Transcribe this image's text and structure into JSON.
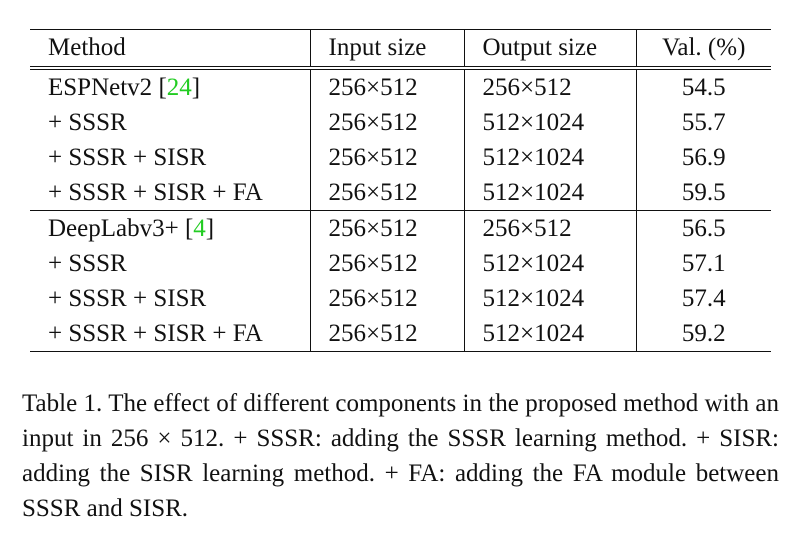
{
  "table": {
    "headers": [
      "Method",
      "Input size",
      "Output size",
      "Val. (%)"
    ],
    "groups": [
      {
        "base_name": "ESPNetv2",
        "base_ref": "24",
        "rows": [
          {
            "method": "",
            "input": "256×512",
            "output": "256×512",
            "val": "54.5",
            "bold": false
          },
          {
            "method": "+ SSSR",
            "input": "256×512",
            "output": "512×1024",
            "val": "55.7",
            "bold": false
          },
          {
            "method": "+ SSSR + SISR",
            "input": "256×512",
            "output": "512×1024",
            "val": "56.9",
            "bold": false
          },
          {
            "method": "+ SSSR + SISR + FA",
            "input": "256×512",
            "output": "512×1024",
            "val": "59.5",
            "bold": true
          }
        ]
      },
      {
        "base_name": "DeepLabv3+",
        "base_ref": "4",
        "rows": [
          {
            "method": "",
            "input": "256×512",
            "output": "256×512",
            "val": "56.5",
            "bold": false
          },
          {
            "method": "+ SSSR",
            "input": "256×512",
            "output": "512×1024",
            "val": "57.1",
            "bold": false
          },
          {
            "method": "+ SSSR + SISR",
            "input": "256×512",
            "output": "512×1024",
            "val": "57.4",
            "bold": false
          },
          {
            "method": "+ SSSR + SISR + FA",
            "input": "256×512",
            "output": "512×1024",
            "val": "59.2",
            "bold": true
          }
        ]
      }
    ]
  },
  "caption": {
    "label": "Table 1.",
    "text": "The effect of different components in the proposed method with an input in 256 × 512. + SSSR: adding the SSSR learning method. + SISR: adding the SISR learning method. + FA: adding the FA module between SSSR and SISR."
  },
  "colors": {
    "reference_link": "#22cc22",
    "rules": "#111111"
  }
}
